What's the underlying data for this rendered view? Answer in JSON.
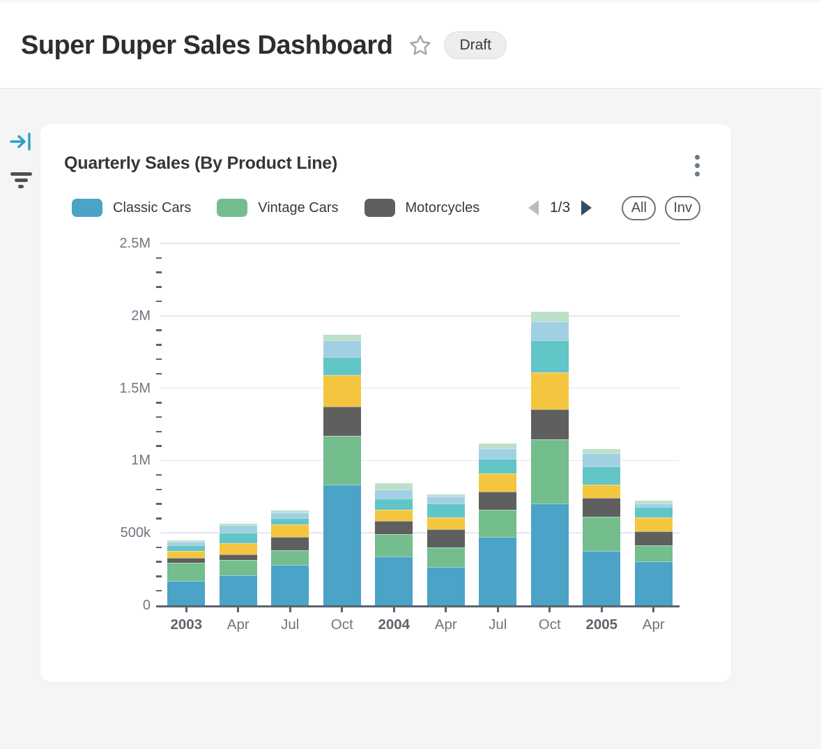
{
  "header": {
    "title": "Super Duper Sales Dashboard",
    "badge": "Draft"
  },
  "rail": {
    "expand_icon": "expand-panel-icon",
    "filter_icon": "filter-icon"
  },
  "card": {
    "title": "Quarterly Sales (By Product Line)",
    "menu_icon": "kebab-menu-icon",
    "legend": {
      "items": [
        {
          "label": "Classic Cars",
          "color": "#4BA3C7"
        },
        {
          "label": "Vintage Cars",
          "color": "#74BD8C"
        },
        {
          "label": "Motorcycles",
          "color": "#5F5F5F"
        }
      ],
      "pagination": {
        "label": "1/3",
        "current_page": 1,
        "total_pages": 3,
        "prev_enabled": false,
        "next_enabled": true
      },
      "buttons": {
        "all": "All",
        "inverse": "Inv"
      }
    }
  },
  "chart_data": {
    "type": "bar",
    "stacked": true,
    "title": "Quarterly Sales (By Product Line)",
    "categories": [
      "2003",
      "Apr",
      "Jul",
      "Oct",
      "2004",
      "Apr",
      "Jul",
      "Oct",
      "2005",
      "Apr"
    ],
    "year_label_indices": [
      0,
      4,
      8
    ],
    "value_unit": "thousands",
    "ylim_k": [
      0,
      2500
    ],
    "y_ticks": [
      "0",
      "500k",
      "1M",
      "1.5M",
      "2M",
      "2.5M"
    ],
    "minor_ticks_per_interval": 4,
    "grid": "horizontal-major-only",
    "legend_position": "top",
    "series": [
      {
        "name": "Classic Cars",
        "color": "#4BA3C7",
        "values": [
          167,
          209,
          281,
          834,
          339,
          266,
          471,
          702,
          376,
          302
        ]
      },
      {
        "name": "Vintage Cars",
        "color": "#74BD8C",
        "values": [
          125,
          105,
          100,
          335,
          150,
          132,
          190,
          444,
          234,
          110
        ]
      },
      {
        "name": "Motorcycles",
        "color": "#5F5F5F",
        "values": [
          37,
          37,
          90,
          202,
          92,
          126,
          124,
          205,
          132,
          97
        ]
      },
      {
        "name": "unlabeled (yellow)",
        "color": "#F4C63F",
        "values": [
          48,
          76,
          87,
          218,
          81,
          84,
          123,
          258,
          92,
          97
        ]
      },
      {
        "name": "unlabeled (teal)",
        "color": "#62C5C7",
        "values": [
          37,
          72,
          45,
          124,
          73,
          97,
          103,
          223,
          123,
          73
        ]
      },
      {
        "name": "unlabeled (light blue)",
        "color": "#A2D0E3",
        "values": [
          24,
          53,
          40,
          118,
          65,
          45,
          74,
          129,
          95,
          24
        ]
      },
      {
        "name": "unlabeled (light green)",
        "color": "#BCE0C8",
        "values": [
          11,
          11,
          11,
          37,
          44,
          16,
          31,
          65,
          29,
          19
        ]
      }
    ],
    "totals_k": [
      449,
      563,
      654,
      1868,
      844,
      766,
      1116,
      2026,
      1081,
      722
    ]
  }
}
